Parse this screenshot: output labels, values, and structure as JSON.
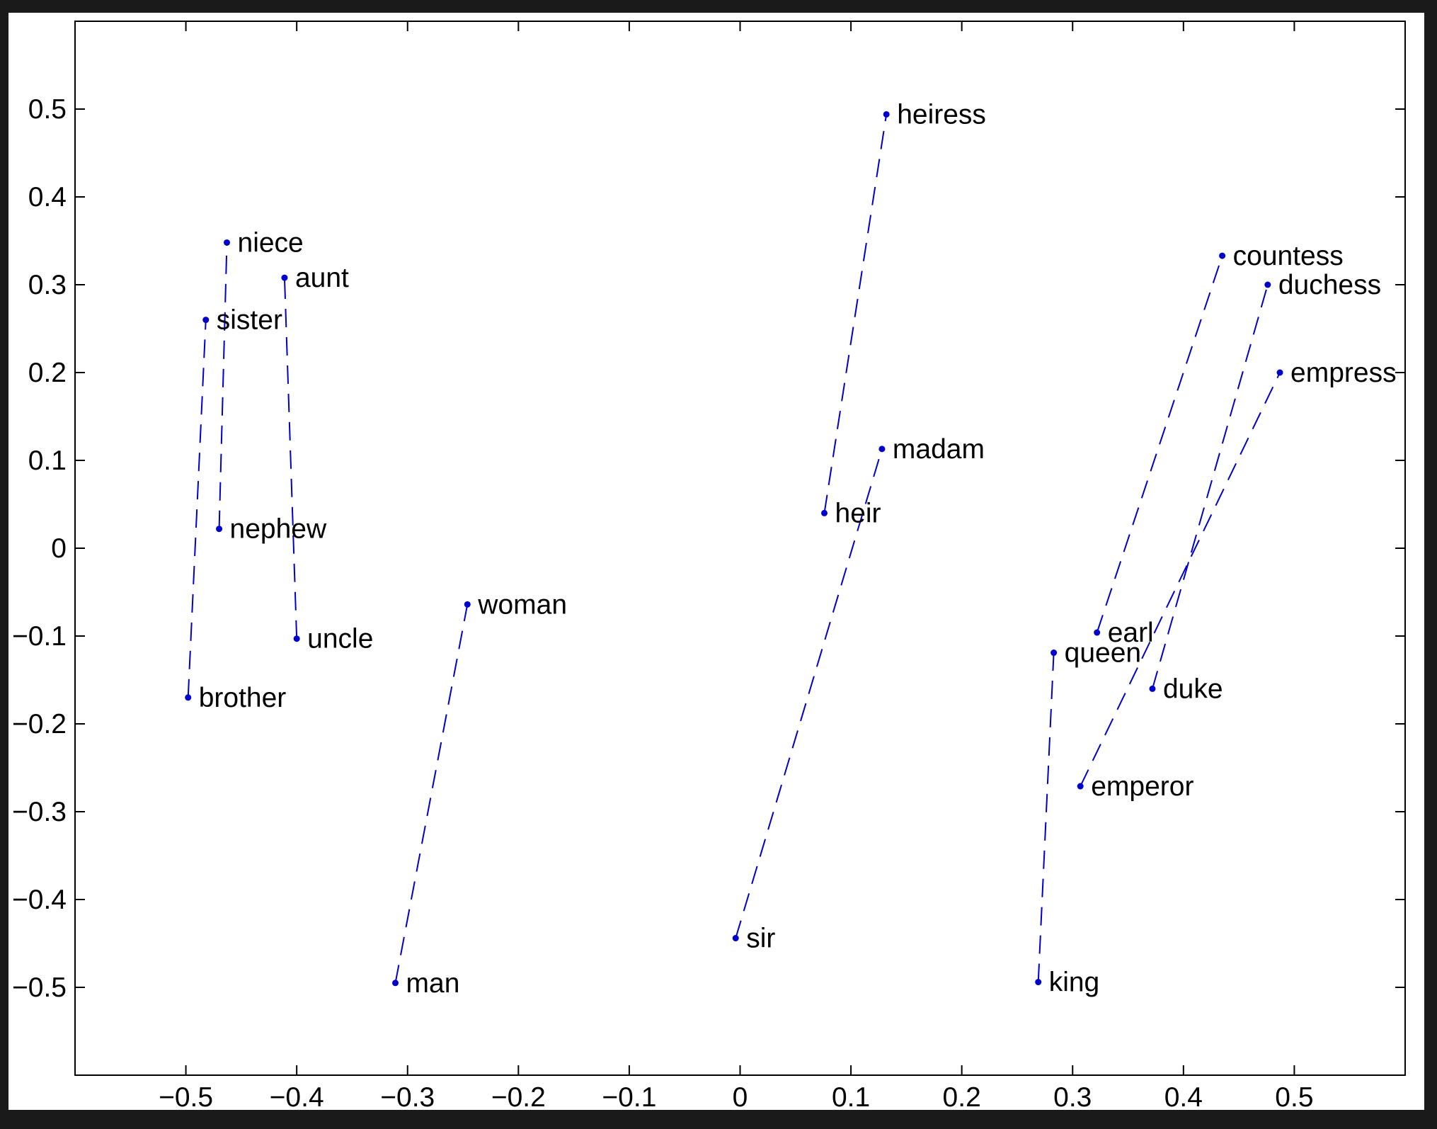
{
  "chart_data": {
    "type": "scatter",
    "title": "",
    "xlabel": "",
    "ylabel": "",
    "xlim": [
      -0.6,
      0.6
    ],
    "ylim": [
      -0.6,
      0.6
    ],
    "xticks": [
      -0.5,
      -0.4,
      -0.3,
      -0.2,
      -0.1,
      0,
      0.1,
      0.2,
      0.3,
      0.4,
      0.5
    ],
    "yticks": [
      -0.5,
      -0.4,
      -0.3,
      -0.2,
      -0.1,
      0,
      0.1,
      0.2,
      0.3,
      0.4,
      0.5
    ],
    "xtick_labels": [
      "−0.5",
      "−0.4",
      "−0.3",
      "−0.2",
      "−0.1",
      "0",
      "0.1",
      "0.2",
      "0.3",
      "0.4",
      "0.5"
    ],
    "ytick_labels": [
      "−0.5",
      "−0.4",
      "−0.3",
      "−0.2",
      "−0.1",
      "0",
      "0.1",
      "0.2",
      "0.3",
      "0.4",
      "0.5"
    ],
    "grid": false,
    "colors": {
      "points": "#0000cc",
      "lines": "#0000cc",
      "text": "#000000",
      "axes": "#000000"
    },
    "points": [
      {
        "label": "brother",
        "x": -0.498,
        "y": -0.17
      },
      {
        "label": "sister",
        "x": -0.482,
        "y": 0.26
      },
      {
        "label": "nephew",
        "x": -0.47,
        "y": 0.022
      },
      {
        "label": "niece",
        "x": -0.463,
        "y": 0.348
      },
      {
        "label": "uncle",
        "x": -0.4,
        "y": -0.103
      },
      {
        "label": "aunt",
        "x": -0.411,
        "y": 0.308
      },
      {
        "label": "man",
        "x": -0.311,
        "y": -0.495
      },
      {
        "label": "woman",
        "x": -0.246,
        "y": -0.064
      },
      {
        "label": "sir",
        "x": -0.004,
        "y": -0.444
      },
      {
        "label": "madam",
        "x": 0.128,
        "y": 0.113
      },
      {
        "label": "heir",
        "x": 0.076,
        "y": 0.04
      },
      {
        "label": "heiress",
        "x": 0.132,
        "y": 0.494
      },
      {
        "label": "king",
        "x": 0.269,
        "y": -0.494
      },
      {
        "label": "queen",
        "x": 0.283,
        "y": -0.119
      },
      {
        "label": "earl",
        "x": 0.322,
        "y": -0.096
      },
      {
        "label": "countess",
        "x": 0.435,
        "y": 0.333
      },
      {
        "label": "duke",
        "x": 0.372,
        "y": -0.16
      },
      {
        "label": "duchess",
        "x": 0.476,
        "y": 0.3
      },
      {
        "label": "emperor",
        "x": 0.307,
        "y": -0.271
      },
      {
        "label": "empress",
        "x": 0.487,
        "y": 0.2
      }
    ],
    "pairs": [
      [
        "brother",
        "sister"
      ],
      [
        "nephew",
        "niece"
      ],
      [
        "uncle",
        "aunt"
      ],
      [
        "man",
        "woman"
      ],
      [
        "sir",
        "madam"
      ],
      [
        "heir",
        "heiress"
      ],
      [
        "king",
        "queen"
      ],
      [
        "earl",
        "countess"
      ],
      [
        "duke",
        "duchess"
      ],
      [
        "emperor",
        "empress"
      ]
    ],
    "line_style": "dashed"
  }
}
